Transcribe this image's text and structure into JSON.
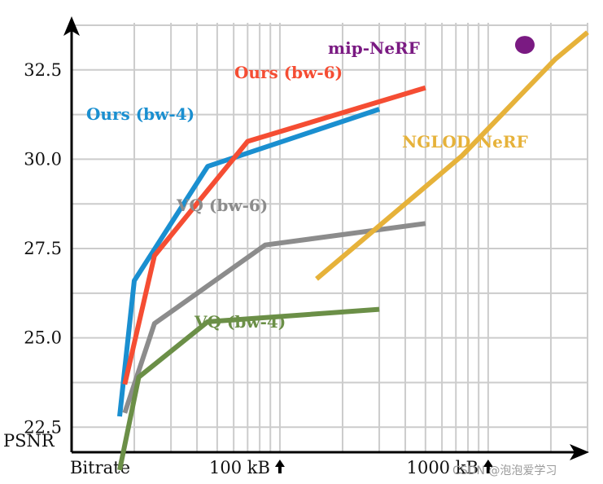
{
  "chart_data": {
    "type": "line",
    "x_scale": "log",
    "y_label": "PSNR",
    "x_label": "Bitrate",
    "ylim": [
      21.8,
      34.0
    ],
    "xlim_kb": [
      10,
      3000
    ],
    "y_ticks": [
      "22.5",
      "25.0",
      "27.5",
      "30.0",
      "32.5"
    ],
    "y_tick_values": [
      22.5,
      25.0,
      27.5,
      30.0,
      32.5
    ],
    "x_tick_labels": [
      {
        "text": "100 kB",
        "value": 100
      },
      {
        "text": "1000 kB",
        "value": 1000
      }
    ],
    "grid": true,
    "series": [
      {
        "name": "Ours (bw-4)",
        "color": "#1a8fd0",
        "x": [
          17,
          20,
          45,
          300
        ],
        "y": [
          22.8,
          26.6,
          29.8,
          31.4
        ]
      },
      {
        "name": "Ours (bw-6)",
        "color": "#f54d33",
        "x": [
          18,
          25,
          70,
          500
        ],
        "y": [
          23.7,
          27.3,
          30.5,
          32.0
        ]
      },
      {
        "name": "VQ (bw-6)",
        "color": "#8c8c8c",
        "x": [
          18,
          25,
          85,
          500
        ],
        "y": [
          22.9,
          25.4,
          27.6,
          28.2
        ]
      },
      {
        "name": "VQ (bw-4)",
        "color": "#6b8f47",
        "x": [
          17,
          21,
          45,
          300
        ],
        "y": [
          21.3,
          23.9,
          25.45,
          25.8
        ]
      },
      {
        "name": "NGLOD-NeRF",
        "color": "#e6b23a",
        "x": [
          150,
          750,
          2100,
          3000
        ],
        "y": [
          26.65,
          30.1,
          32.8,
          33.55
        ]
      },
      {
        "name": "mip-NeRF",
        "color": "#7a1a82",
        "x": [
          1500
        ],
        "y": [
          33.2
        ],
        "marker": "circle"
      }
    ]
  },
  "watermark": "CSDN @泡泡爱学习"
}
